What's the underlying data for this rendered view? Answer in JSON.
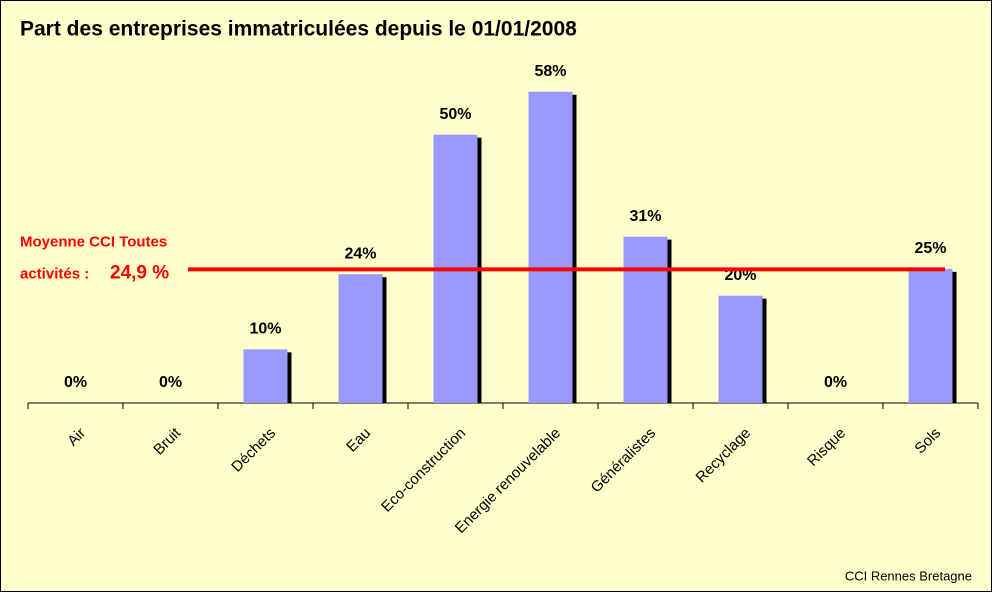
{
  "chart_data": {
    "type": "bar",
    "title": "Part des entreprises immatriculées depuis le 01/01/2008",
    "categories": [
      "Air",
      "Bruit",
      "Déchets",
      "Eau",
      "Eco-construction",
      "Energie renouvelable",
      "Généralistes",
      "Recyclage",
      "Risque",
      "Sols"
    ],
    "values": [
      0,
      0,
      10,
      24,
      50,
      58,
      31,
      20,
      0,
      25
    ],
    "value_labels": [
      "0%",
      "0%",
      "10%",
      "24%",
      "50%",
      "58%",
      "31%",
      "20%",
      "0%",
      "25%"
    ],
    "color": "#9999ff",
    "ylim": [
      0,
      60
    ],
    "average": {
      "label_line1": "Moyenne CCI Toutes",
      "label_line2": "activités :",
      "value": 24.9,
      "value_label": "24,9 %",
      "color": "#ff0000"
    },
    "source": "CCI Rennes Bretagne"
  }
}
